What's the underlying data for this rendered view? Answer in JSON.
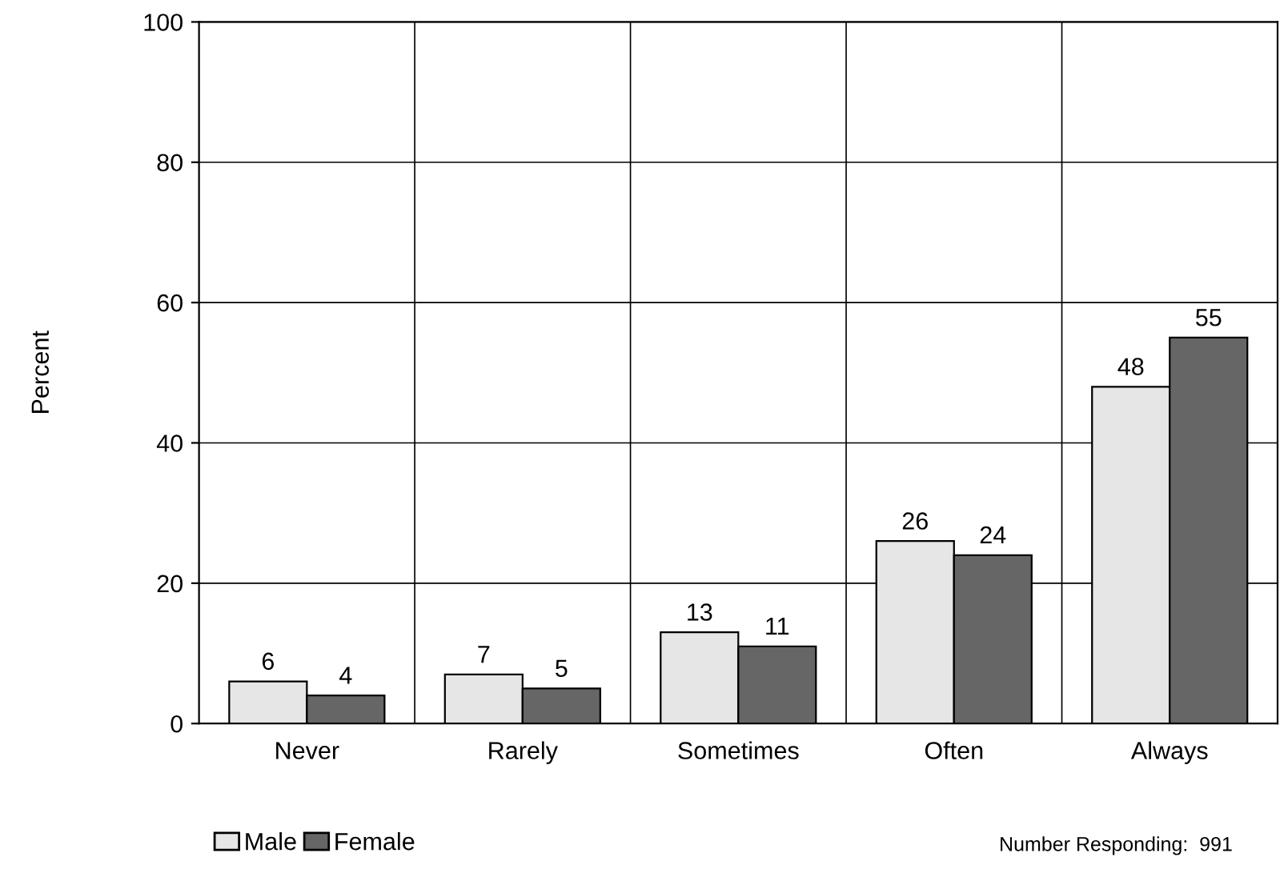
{
  "chart_data": {
    "type": "bar",
    "ylabel": "Percent",
    "categories": [
      "Never",
      "Rarely",
      "Sometimes",
      "Often",
      "Always"
    ],
    "series": [
      {
        "name": "Male",
        "color": "#e6e6e6",
        "values": [
          6,
          7,
          13,
          26,
          48
        ]
      },
      {
        "name": "Female",
        "color": "#666666",
        "values": [
          4,
          5,
          11,
          24,
          55
        ]
      }
    ],
    "ylim": [
      0,
      100
    ],
    "yticks": [
      0,
      20,
      40,
      60,
      80,
      100
    ],
    "grid": true,
    "data_labels": true,
    "legend": "bottom left",
    "annotations": [
      "Number Responding:  991"
    ]
  }
}
